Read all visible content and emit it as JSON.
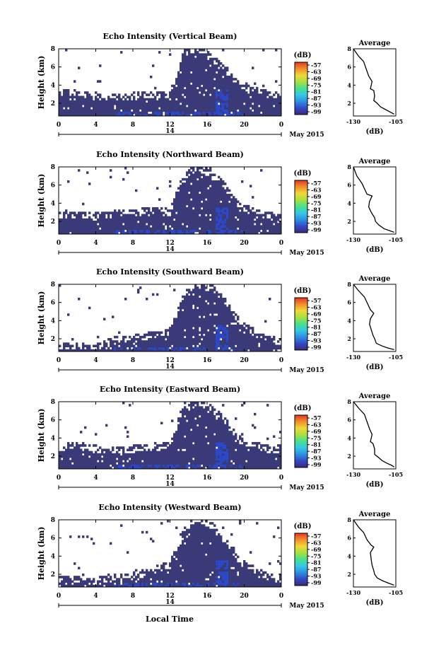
{
  "date_label": "May 2015",
  "x_axis_title": "Local Time",
  "colorbar_unit": "(dB)",
  "colorbar_ticks": [
    "-57",
    "-63",
    "-69",
    "-75",
    "-81",
    "-87",
    "-93",
    "-99"
  ],
  "average_title": "Average",
  "average_xlabel": "(dB)",
  "colors": {
    "echo_base": "#3a3a78",
    "echo_strong": "#2a48c8",
    "colorbar": [
      "#3c2a78",
      "#3448c8",
      "#2f8fe0",
      "#34c8e6",
      "#48e08c",
      "#a8e040",
      "#f0d838",
      "#f0902c",
      "#e83424"
    ]
  },
  "chart_data": [
    {
      "type": "heatmap",
      "title": "Echo Intensity (Vertical Beam)",
      "ylabel": "Height (km)",
      "xlim": [
        0,
        24
      ],
      "ylim": [
        0.6,
        8
      ],
      "x_ticks": [
        "0",
        "4",
        "8",
        "12",
        "16",
        "20",
        "0"
      ],
      "day_tick": "14",
      "y_ticks": [
        "2",
        "4",
        "6",
        "8"
      ],
      "color_scale_db": [
        -99,
        -57
      ],
      "echo_layer": {
        "x": [
          0,
          2,
          4,
          6,
          8,
          10,
          12,
          13.5,
          15,
          16.5,
          18,
          19.5,
          21,
          22.5,
          24
        ],
        "top_km": [
          3.0,
          3.2,
          2.8,
          2.6,
          2.8,
          3.0,
          3.0,
          7.5,
          8.0,
          7.0,
          5.6,
          4.0,
          3.4,
          3.0,
          3.0
        ]
      }
    },
    {
      "type": "heatmap",
      "title": "Echo Intensity (Northward Beam)",
      "ylabel": "Height (km)",
      "xlim": [
        0,
        24
      ],
      "ylim": [
        0.6,
        8
      ],
      "x_ticks": [
        "0",
        "4",
        "8",
        "12",
        "16",
        "20",
        "0"
      ],
      "day_tick": "14",
      "y_ticks": [
        "2",
        "4",
        "6",
        "8"
      ],
      "color_scale_db": [
        -99,
        -57
      ],
      "echo_layer": {
        "x": [
          0,
          2,
          4,
          6,
          8,
          10,
          12,
          13.5,
          15,
          16.5,
          18,
          19.5,
          21,
          22.5,
          24
        ],
        "top_km": [
          2.6,
          2.8,
          2.6,
          2.8,
          3.0,
          3.2,
          3.0,
          7.0,
          8.0,
          7.2,
          6.0,
          3.6,
          3.2,
          2.6,
          2.6
        ]
      }
    },
    {
      "type": "heatmap",
      "title": "Echo Intensity (Southward Beam)",
      "ylabel": "Height (km)",
      "xlim": [
        0,
        24
      ],
      "ylim": [
        0.6,
        8
      ],
      "x_ticks": [
        "0",
        "4",
        "8",
        "12",
        "16",
        "20",
        "0"
      ],
      "day_tick": "14",
      "y_ticks": [
        "2",
        "4",
        "6",
        "8"
      ],
      "color_scale_db": [
        -99,
        -57
      ],
      "echo_layer": {
        "x": [
          0,
          2,
          4,
          6,
          8,
          10,
          12,
          13.5,
          15,
          16.5,
          18,
          19.5,
          21,
          22.5,
          24
        ],
        "top_km": [
          1.2,
          1.3,
          1.2,
          1.8,
          2.0,
          2.4,
          2.8,
          6.8,
          8.0,
          7.6,
          6.2,
          3.6,
          2.8,
          2.0,
          1.6
        ]
      }
    },
    {
      "type": "heatmap",
      "title": "Echo Intensity (Eastward Beam)",
      "ylabel": "Height (km)",
      "xlim": [
        0,
        24
      ],
      "ylim": [
        0.6,
        8
      ],
      "x_ticks": [
        "0",
        "4",
        "8",
        "12",
        "16",
        "20",
        "0"
      ],
      "day_tick": "14",
      "y_ticks": [
        "2",
        "4",
        "6",
        "8"
      ],
      "color_scale_db": [
        -99,
        -57
      ],
      "echo_layer": {
        "x": [
          0,
          2,
          4,
          6,
          8,
          10,
          12,
          13.5,
          15,
          16.5,
          18,
          19.5,
          21,
          22.5,
          24
        ],
        "top_km": [
          3.0,
          3.2,
          2.8,
          2.6,
          2.8,
          3.0,
          3.2,
          7.6,
          8.0,
          7.2,
          5.8,
          3.8,
          3.2,
          2.8,
          2.8
        ]
      }
    },
    {
      "type": "heatmap",
      "title": "Echo Intensity (Westward Beam)",
      "ylabel": "Height (km)",
      "xlim": [
        0,
        24
      ],
      "ylim": [
        0.6,
        8
      ],
      "x_ticks": [
        "0",
        "4",
        "8",
        "12",
        "16",
        "20",
        "0"
      ],
      "day_tick": "14",
      "y_ticks": [
        "2",
        "4",
        "6",
        "8"
      ],
      "color_scale_db": [
        -99,
        -57
      ],
      "echo_layer": {
        "x": [
          0,
          2,
          4,
          6,
          8,
          10,
          12,
          13.5,
          15,
          16.5,
          18,
          19.5,
          21,
          22.5,
          24
        ],
        "top_km": [
          1.4,
          1.4,
          1.2,
          1.6,
          1.8,
          2.4,
          3.0,
          7.0,
          8.0,
          7.4,
          5.6,
          3.4,
          2.6,
          1.8,
          1.6
        ]
      }
    },
    {
      "type": "line",
      "title": "Average",
      "xlabel": "(dB)",
      "xlim": [
        -130,
        -105
      ],
      "ylim": [
        0.6,
        8
      ],
      "x_ticks": [
        "-130",
        "-105"
      ],
      "y_ticks": [
        "2",
        "4",
        "6",
        "8"
      ],
      "x": [
        -130,
        -127,
        -124,
        -122.5,
        -121,
        -119,
        -120,
        -118,
        -117.5,
        -118,
        -116,
        -114,
        -111,
        -108,
        -106
      ],
      "y": [
        8.0,
        7.2,
        6.6,
        5.8,
        5.0,
        4.4,
        3.6,
        3.4,
        2.8,
        2.3,
        2.0,
        1.6,
        1.3,
        1.0,
        0.8
      ]
    },
    {
      "type": "line",
      "title": "Average",
      "xlabel": "(dB)",
      "xlim": [
        -130,
        -105
      ],
      "ylim": [
        0.6,
        8
      ],
      "x_ticks": [
        "-130",
        "-105"
      ],
      "y_ticks": [
        "2",
        "4",
        "6",
        "8"
      ],
      "x": [
        -130,
        -128,
        -125,
        -123.5,
        -122,
        -119,
        -120.5,
        -121,
        -119.5,
        -117.5,
        -117,
        -115,
        -112,
        -109,
        -106
      ],
      "y": [
        8.0,
        7.0,
        6.2,
        5.6,
        5.0,
        4.8,
        4.2,
        3.6,
        3.0,
        2.4,
        2.0,
        1.6,
        1.2,
        1.0,
        0.8
      ]
    },
    {
      "type": "line",
      "title": "Average",
      "xlabel": "(dB)",
      "xlim": [
        -130,
        -105
      ],
      "ylim": [
        0.6,
        8
      ],
      "x_ticks": [
        "-130",
        "-105"
      ],
      "y_ticks": [
        "2",
        "4",
        "6",
        "8"
      ],
      "x": [
        -130,
        -127,
        -123.5,
        -121.5,
        -120,
        -118,
        -120,
        -120.5,
        -119.5,
        -118.5,
        -117.5,
        -116.5,
        -113,
        -110,
        -106
      ],
      "y": [
        8.0,
        7.3,
        6.6,
        5.8,
        5.2,
        4.8,
        4.2,
        3.6,
        3.0,
        2.4,
        2.0,
        1.5,
        1.2,
        1.0,
        0.8
      ]
    },
    {
      "type": "line",
      "title": "Average",
      "xlabel": "(dB)",
      "xlim": [
        -130,
        -105
      ],
      "ylim": [
        0.6,
        8
      ],
      "x_ticks": [
        "-130",
        "-105"
      ],
      "y_ticks": [
        "2",
        "4",
        "6",
        "8"
      ],
      "x": [
        -130,
        -126.5,
        -123.5,
        -122,
        -120.5,
        -119,
        -120,
        -118.5,
        -117.5,
        -117.5,
        -115.5,
        -113,
        -110,
        -107.5,
        -106
      ],
      "y": [
        8.0,
        7.2,
        6.6,
        5.8,
        5.0,
        4.4,
        3.6,
        3.4,
        2.8,
        2.2,
        1.9,
        1.5,
        1.2,
        1.0,
        0.8
      ]
    },
    {
      "type": "line",
      "title": "Average",
      "xlabel": "(dB)",
      "xlim": [
        -130,
        -105
      ],
      "ylim": [
        0.6,
        8
      ],
      "x_ticks": [
        "-130",
        "-105"
      ],
      "y_ticks": [
        "2",
        "4",
        "6",
        "8"
      ],
      "x": [
        -130,
        -127,
        -124,
        -122,
        -119.5,
        -118,
        -120,
        -119.5,
        -119,
        -118,
        -117.5,
        -116,
        -113,
        -109,
        -106
      ],
      "y": [
        8.0,
        7.2,
        6.6,
        5.8,
        5.2,
        5.0,
        4.4,
        3.6,
        3.0,
        2.4,
        2.0,
        1.6,
        1.3,
        1.0,
        0.8
      ]
    }
  ]
}
